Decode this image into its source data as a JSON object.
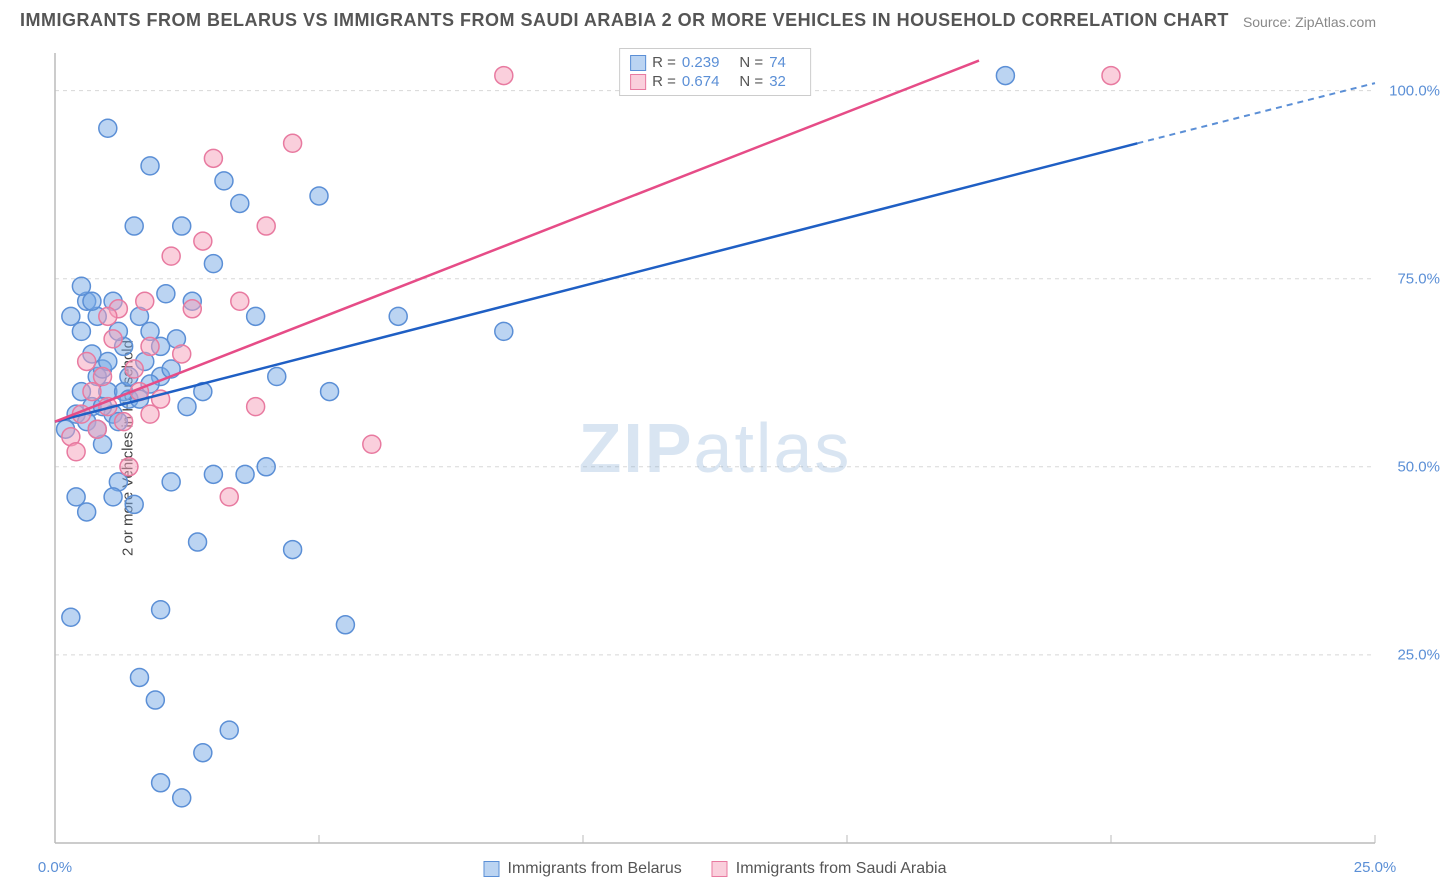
{
  "title": "IMMIGRANTS FROM BELARUS VS IMMIGRANTS FROM SAUDI ARABIA 2 OR MORE VEHICLES IN HOUSEHOLD CORRELATION CHART",
  "source": "Source: ZipAtlas.com",
  "ylabel": "2 or more Vehicles in Household",
  "watermark_part1": "ZIP",
  "watermark_part2": "atlas",
  "chart": {
    "type": "scatter",
    "background_color": "#ffffff",
    "grid_color": "#d8d8d8",
    "axis_color": "#bbbbbb",
    "tick_color": "#5b8fd6",
    "xlim": [
      0,
      25
    ],
    "ylim": [
      0,
      105
    ],
    "xticks": [
      0,
      25
    ],
    "xtick_labels": [
      "0.0%",
      "25.0%"
    ],
    "yticks": [
      25,
      50,
      75,
      100
    ],
    "ytick_labels": [
      "25.0%",
      "50.0%",
      "75.0%",
      "100.0%"
    ],
    "series": [
      {
        "name": "Immigrants from Belarus",
        "marker_fill": "rgba(120,170,230,0.5)",
        "marker_stroke": "#5b8fd6",
        "line_color": "#1f5fc4",
        "line_dash_color": "#5b8fd6",
        "r_label": "R =",
        "r_value": "0.239",
        "n_label": "N =",
        "n_value": "74",
        "trend": {
          "x1": 0,
          "y1": 56,
          "x2_solid": 20.5,
          "y2_solid": 93,
          "x2": 25,
          "y2": 101
        },
        "points": [
          [
            0.2,
            55
          ],
          [
            0.3,
            30
          ],
          [
            0.4,
            57
          ],
          [
            0.5,
            68
          ],
          [
            0.5,
            60
          ],
          [
            0.6,
            72
          ],
          [
            0.7,
            58
          ],
          [
            0.7,
            65
          ],
          [
            0.8,
            70
          ],
          [
            0.8,
            62
          ],
          [
            0.9,
            63
          ],
          [
            0.9,
            53
          ],
          [
            1.0,
            60
          ],
          [
            1.0,
            95
          ],
          [
            1.1,
            57
          ],
          [
            1.1,
            72
          ],
          [
            1.2,
            48
          ],
          [
            1.2,
            56
          ],
          [
            1.3,
            66
          ],
          [
            1.3,
            60
          ],
          [
            1.4,
            59
          ],
          [
            1.5,
            45
          ],
          [
            1.5,
            82
          ],
          [
            1.6,
            70
          ],
          [
            1.6,
            22
          ],
          [
            1.7,
            64
          ],
          [
            1.8,
            90
          ],
          [
            1.8,
            68
          ],
          [
            1.9,
            19
          ],
          [
            2.0,
            62
          ],
          [
            2.0,
            31
          ],
          [
            2.1,
            73
          ],
          [
            2.2,
            48
          ],
          [
            2.3,
            67
          ],
          [
            2.4,
            82
          ],
          [
            2.5,
            58
          ],
          [
            2.6,
            72
          ],
          [
            2.7,
            40
          ],
          [
            2.8,
            12
          ],
          [
            2.8,
            60
          ],
          [
            3.0,
            77
          ],
          [
            3.0,
            49
          ],
          [
            3.2,
            88
          ],
          [
            3.3,
            15
          ],
          [
            3.5,
            85
          ],
          [
            3.6,
            49
          ],
          [
            3.8,
            70
          ],
          [
            4.0,
            50
          ],
          [
            4.2,
            62
          ],
          [
            4.5,
            39
          ],
          [
            5.0,
            86
          ],
          [
            5.2,
            60
          ],
          [
            5.5,
            29
          ],
          [
            6.5,
            70
          ],
          [
            8.5,
            68
          ],
          [
            18.0,
            102
          ],
          [
            0.4,
            46
          ],
          [
            0.6,
            56
          ],
          [
            0.8,
            55
          ],
          [
            1.0,
            64
          ],
          [
            1.2,
            68
          ],
          [
            1.4,
            62
          ],
          [
            1.6,
            59
          ],
          [
            1.8,
            61
          ],
          [
            2.0,
            66
          ],
          [
            2.2,
            63
          ],
          [
            0.3,
            70
          ],
          [
            0.5,
            74
          ],
          [
            0.7,
            72
          ],
          [
            0.9,
            58
          ],
          [
            2.4,
            6
          ],
          [
            2.0,
            8
          ],
          [
            0.6,
            44
          ],
          [
            1.1,
            46
          ]
        ]
      },
      {
        "name": "Immigrants from Saudi Arabia",
        "marker_fill": "rgba(245,160,185,0.5)",
        "marker_stroke": "#e87aa0",
        "line_color": "#e64c87",
        "r_label": "R =",
        "r_value": "0.674",
        "n_label": "N =",
        "n_value": "32",
        "trend": {
          "x1": 0,
          "y1": 56,
          "x2_solid": 17.5,
          "y2_solid": 104,
          "x2": 17.5,
          "y2": 104
        },
        "points": [
          [
            0.3,
            54
          ],
          [
            0.5,
            57
          ],
          [
            0.6,
            64
          ],
          [
            0.7,
            60
          ],
          [
            0.8,
            55
          ],
          [
            0.9,
            62
          ],
          [
            1.0,
            58
          ],
          [
            1.1,
            67
          ],
          [
            1.2,
            71
          ],
          [
            1.3,
            56
          ],
          [
            1.4,
            50
          ],
          [
            1.5,
            63
          ],
          [
            1.6,
            60
          ],
          [
            1.7,
            72
          ],
          [
            1.8,
            66
          ],
          [
            2.0,
            59
          ],
          [
            2.2,
            78
          ],
          [
            2.4,
            65
          ],
          [
            2.6,
            71
          ],
          [
            2.8,
            80
          ],
          [
            3.0,
            91
          ],
          [
            3.3,
            46
          ],
          [
            3.5,
            72
          ],
          [
            3.8,
            58
          ],
          [
            4.0,
            82
          ],
          [
            4.5,
            93
          ],
          [
            6.0,
            53
          ],
          [
            8.5,
            102
          ],
          [
            20.0,
            102
          ],
          [
            0.4,
            52
          ],
          [
            1.0,
            70
          ],
          [
            1.8,
            57
          ]
        ]
      }
    ]
  },
  "legend_bottom": [
    {
      "label": "Immigrants from Belarus",
      "fill": "rgba(120,170,230,0.5)",
      "stroke": "#5b8fd6"
    },
    {
      "label": "Immigrants from Saudi Arabia",
      "fill": "rgba(245,160,185,0.5)",
      "stroke": "#e87aa0"
    }
  ]
}
